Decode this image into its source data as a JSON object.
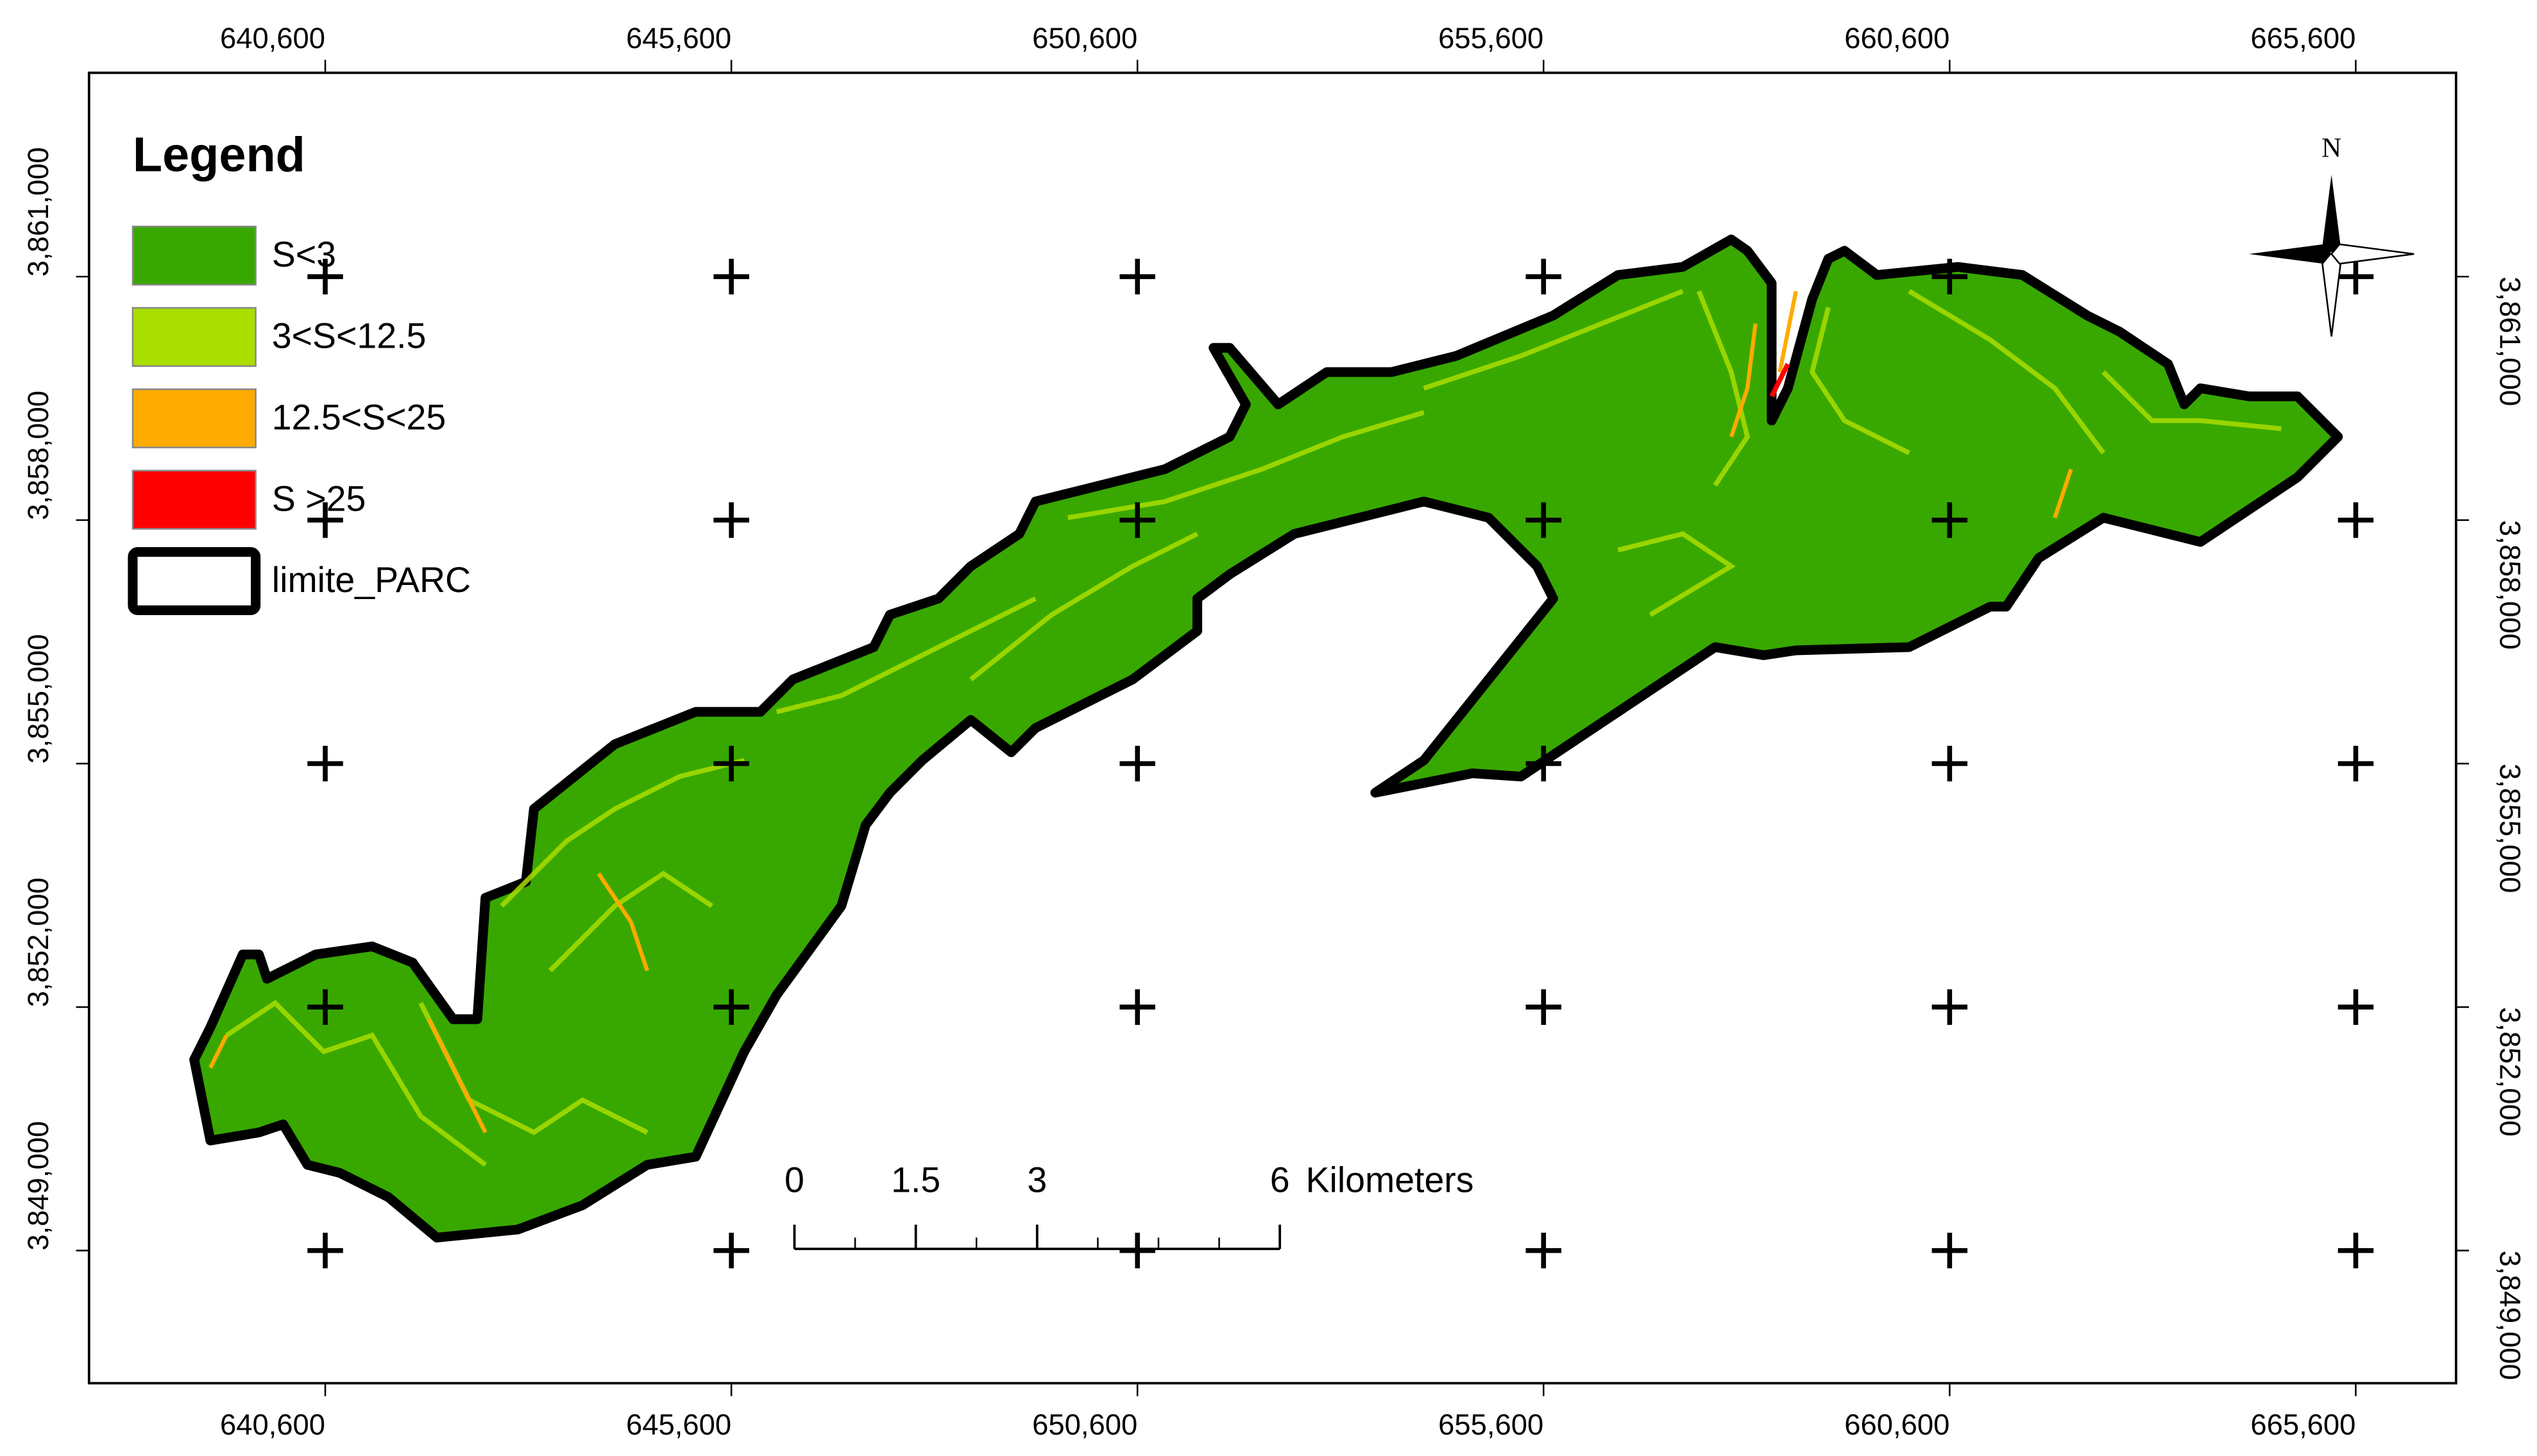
{
  "map": {
    "legend": {
      "title": "Legend",
      "items": [
        {
          "label": "S<3",
          "color": "#38a800"
        },
        {
          "label": "3<S<12.5",
          "color": "#aadd00"
        },
        {
          "label": "12.5<S<25",
          "color": "#ffaa00"
        },
        {
          "label": "S >25",
          "color": "#ff0000"
        },
        {
          "label": "limite_PARC",
          "color": "#000000"
        }
      ]
    },
    "x_ticks": [
      {
        "value": 640600,
        "label": "640,600"
      },
      {
        "value": 645600,
        "label": "645,600"
      },
      {
        "value": 650600,
        "label": "650,600"
      },
      {
        "value": 655600,
        "label": "655,600"
      },
      {
        "value": 660600,
        "label": "660,600"
      },
      {
        "value": 665600,
        "label": "665,600"
      }
    ],
    "y_ticks": [
      {
        "value": 3861000,
        "label": "3,861,000"
      },
      {
        "value": 3858000,
        "label": "3,858,000"
      },
      {
        "value": 3855000,
        "label": "3,855,000"
      },
      {
        "value": 3852000,
        "label": "3,852,000"
      },
      {
        "value": 3849000,
        "label": "3,849,000"
      }
    ],
    "scale_bar": {
      "ticks": [
        0,
        1.5,
        3,
        6
      ],
      "unit": "Kilometers"
    },
    "north_label": "N"
  }
}
